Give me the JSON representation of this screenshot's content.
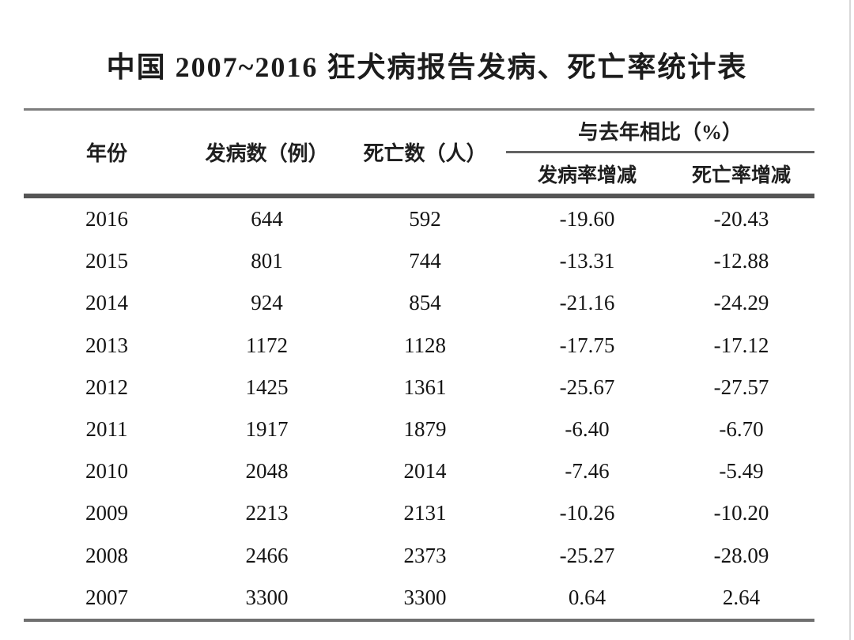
{
  "chart_data": {
    "type": "table",
    "title": "中国 2007~2016 狂犬病报告发病、死亡率统计表",
    "headers": {
      "year": "年份",
      "cases": "发病数（例）",
      "deaths": "死亡数（人）",
      "compare_group": "与去年相比（%）",
      "incidence_change": "发病率增减",
      "mortality_change": "死亡率增减"
    },
    "rows": [
      {
        "year": "2016",
        "cases": "644",
        "deaths": "592",
        "incidence_change": "-19.60",
        "mortality_change": "-20.43"
      },
      {
        "year": "2015",
        "cases": "801",
        "deaths": "744",
        "incidence_change": "-13.31",
        "mortality_change": "-12.88"
      },
      {
        "year": "2014",
        "cases": "924",
        "deaths": "854",
        "incidence_change": "-21.16",
        "mortality_change": "-24.29"
      },
      {
        "year": "2013",
        "cases": "1172",
        "deaths": "1128",
        "incidence_change": "-17.75",
        "mortality_change": "-17.12"
      },
      {
        "year": "2012",
        "cases": "1425",
        "deaths": "1361",
        "incidence_change": "-25.67",
        "mortality_change": "-27.57"
      },
      {
        "year": "2011",
        "cases": "1917",
        "deaths": "1879",
        "incidence_change": "-6.40",
        "mortality_change": "-6.70"
      },
      {
        "year": "2010",
        "cases": "2048",
        "deaths": "2014",
        "incidence_change": "-7.46",
        "mortality_change": "-5.49"
      },
      {
        "year": "2009",
        "cases": "2213",
        "deaths": "2131",
        "incidence_change": "-10.26",
        "mortality_change": "-10.20"
      },
      {
        "year": "2008",
        "cases": "2466",
        "deaths": "2373",
        "incidence_change": "-25.27",
        "mortality_change": "-28.09"
      },
      {
        "year": "2007",
        "cases": "3300",
        "deaths": "3300",
        "incidence_change": "0.64",
        "mortality_change": "2.64"
      }
    ]
  }
}
